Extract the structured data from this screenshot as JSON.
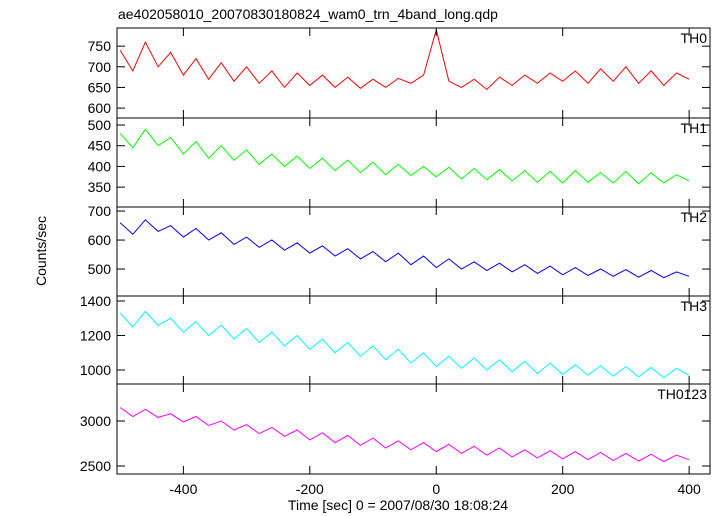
{
  "chart_data": {
    "type": "line",
    "title": "ae402058010_20070830180824_wam0_trn_4band_long.qdp",
    "xlabel": "Time [sec] 0 = 2007/08/30 18:08:24",
    "ylabel": "Counts/sec",
    "xlim": [
      -505,
      433
    ],
    "xticks": [
      -400,
      -200,
      0,
      200,
      400
    ],
    "x": [
      -500,
      -480,
      -460,
      -440,
      -420,
      -400,
      -380,
      -360,
      -340,
      -320,
      -300,
      -280,
      -260,
      -240,
      -220,
      -200,
      -180,
      -160,
      -140,
      -120,
      -100,
      -80,
      -60,
      -40,
      -20,
      0,
      20,
      40,
      60,
      80,
      100,
      120,
      140,
      160,
      180,
      200,
      220,
      240,
      260,
      280,
      300,
      320,
      340,
      360,
      380,
      400
    ],
    "series": [
      {
        "name": "TH0",
        "color": "#ff0000",
        "ylim": [
          576,
          794
        ],
        "yticks": [
          600,
          650,
          700,
          750
        ],
        "values": [
          740,
          690,
          760,
          700,
          735,
          680,
          720,
          670,
          710,
          665,
          700,
          660,
          690,
          650,
          685,
          655,
          680,
          650,
          675,
          648,
          670,
          650,
          672,
          660,
          680,
          790,
          665,
          650,
          670,
          645,
          675,
          655,
          680,
          660,
          685,
          665,
          690,
          660,
          695,
          665,
          700,
          660,
          690,
          655,
          685,
          670
        ]
      },
      {
        "name": "TH1",
        "color": "#00ff00",
        "ylim": [
          302,
          517
        ],
        "yticks": [
          350,
          400,
          450,
          500
        ],
        "values": [
          480,
          445,
          490,
          450,
          470,
          430,
          460,
          420,
          450,
          415,
          440,
          405,
          430,
          400,
          425,
          395,
          420,
          390,
          415,
          385,
          410,
          380,
          405,
          378,
          400,
          375,
          398,
          370,
          395,
          368,
          392,
          365,
          390,
          362,
          388,
          360,
          390,
          362,
          385,
          360,
          388,
          358,
          385,
          360,
          380,
          365
        ]
      },
      {
        "name": "TH2",
        "color": "#0000ff",
        "ylim": [
          407,
          714
        ],
        "yticks": [
          500,
          600,
          700
        ],
        "values": [
          660,
          620,
          670,
          630,
          650,
          610,
          640,
          600,
          625,
          585,
          610,
          575,
          600,
          565,
          590,
          555,
          580,
          545,
          570,
          535,
          560,
          525,
          555,
          515,
          545,
          505,
          535,
          500,
          525,
          495,
          520,
          490,
          515,
          485,
          510,
          480,
          505,
          478,
          500,
          475,
          498,
          472,
          495,
          470,
          490,
          475
        ]
      },
      {
        "name": "TH3",
        "color": "#00ffff",
        "ylim": [
          919,
          1429
        ],
        "yticks": [
          1000,
          1200,
          1400
        ],
        "values": [
          1330,
          1250,
          1340,
          1260,
          1300,
          1220,
          1280,
          1200,
          1260,
          1180,
          1240,
          1160,
          1220,
          1140,
          1200,
          1120,
          1180,
          1100,
          1160,
          1080,
          1140,
          1060,
          1120,
          1040,
          1100,
          1020,
          1080,
          1010,
          1070,
          1000,
          1060,
          990,
          1050,
          980,
          1040,
          975,
          1030,
          970,
          1025,
          965,
          1020,
          960,
          1015,
          955,
          1010,
          970
        ]
      },
      {
        "name": "TH0123",
        "color": "#ff00ff",
        "ylim": [
          2411,
          3411
        ],
        "yticks": [
          2500,
          3000
        ],
        "values": [
          3150,
          3050,
          3130,
          3040,
          3080,
          2990,
          3050,
          2950,
          3000,
          2900,
          2960,
          2860,
          2930,
          2830,
          2900,
          2790,
          2870,
          2760,
          2840,
          2730,
          2810,
          2700,
          2780,
          2680,
          2760,
          2660,
          2740,
          2640,
          2720,
          2620,
          2700,
          2600,
          2680,
          2590,
          2670,
          2580,
          2660,
          2570,
          2650,
          2560,
          2640,
          2555,
          2630,
          2550,
          2620,
          2570
        ]
      }
    ]
  }
}
